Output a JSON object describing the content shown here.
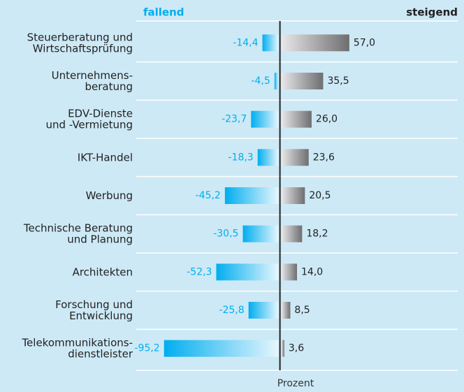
{
  "chart_data": {
    "type": "diverging-bar",
    "categories": [
      "Steuerberatung und\nWirtschaftsprüfung",
      "Unternehmens-\nberatung",
      "EDV-Dienste\nund -Vermietung",
      "IKT-Handel",
      "Werbung",
      "Technische Beratung\nund Planung",
      "Architekten",
      "Forschung und\nEntwicklung",
      "Telekommunikations-\ndienstleister"
    ],
    "series": [
      {
        "name": "fallend",
        "color": "#00aeef",
        "values": [
          -14.4,
          -4.5,
          -23.7,
          -18.3,
          -45.2,
          -30.5,
          -52.3,
          -25.8,
          -95.2
        ],
        "value_labels": [
          "-14,4",
          "-4,5",
          "-23,7",
          "-18,3",
          "-45,2",
          "-30,5",
          "-52,3",
          "-25,8",
          "-95,2"
        ]
      },
      {
        "name": "steigend",
        "color": "#6e6e70",
        "values": [
          57.0,
          35.5,
          26.0,
          23.6,
          20.5,
          18.2,
          14.0,
          8.5,
          3.6
        ],
        "value_labels": [
          "57,0",
          "35,5",
          "26,0",
          "23,6",
          "20,5",
          "18,2",
          "14,0",
          "8,5",
          "3,6"
        ]
      }
    ],
    "xlabel": "Prozent",
    "xlim": [
      -118,
      146
    ]
  }
}
